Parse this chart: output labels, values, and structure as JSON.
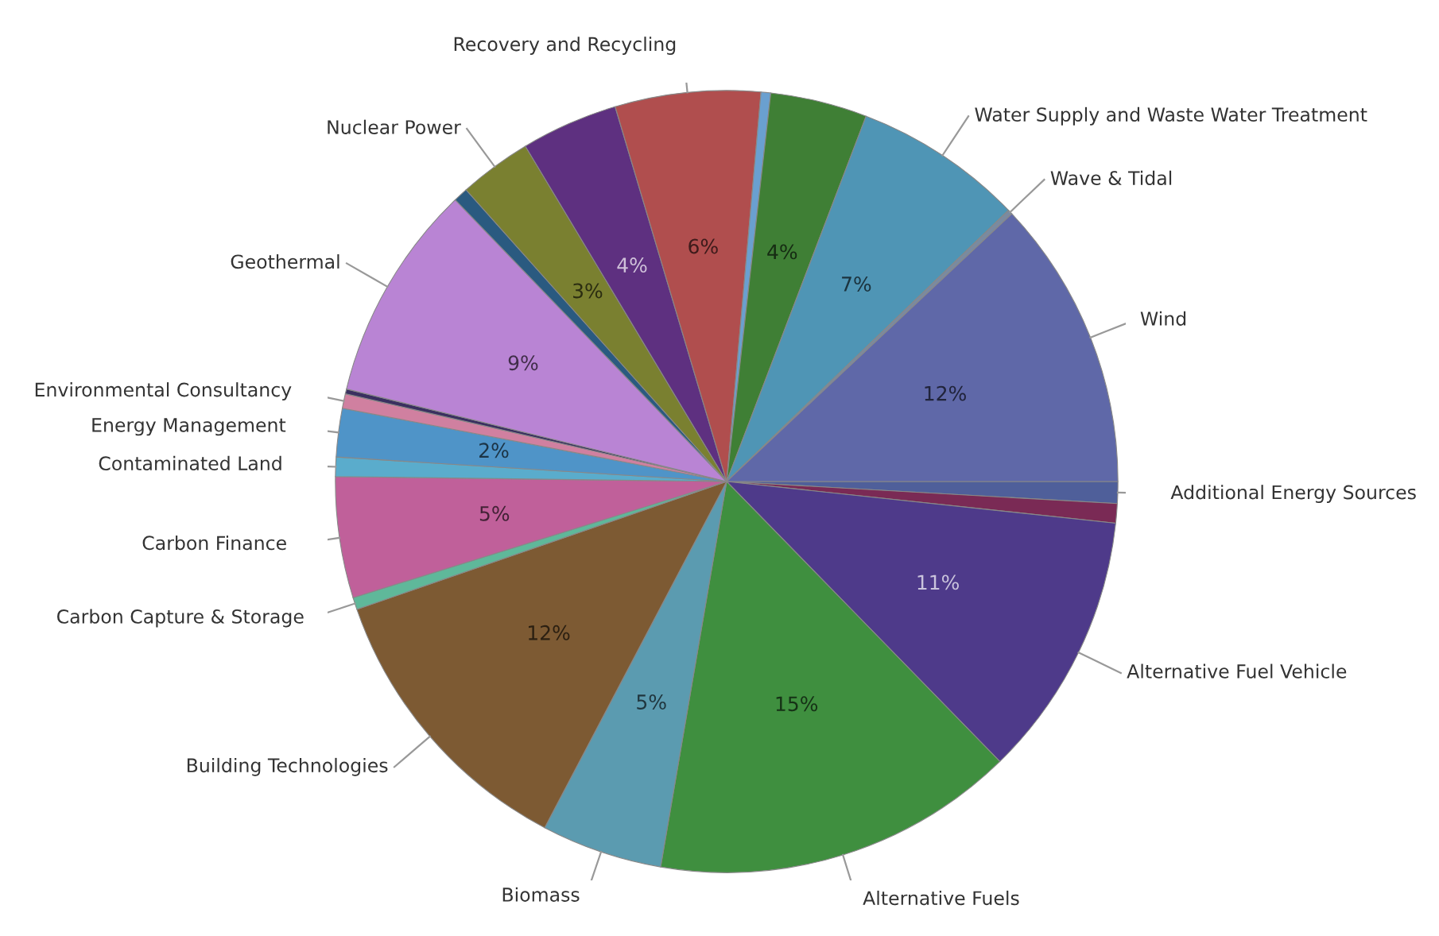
{
  "chart_data": {
    "type": "pie",
    "categories": [
      "Additional Energy Sources",
      null,
      "Alternative Fuel Vehicle",
      "Alternative Fuels",
      "Biomass",
      "Building Technologies",
      "Carbon Capture & Storage",
      "Carbon Finance",
      "Contaminated Land",
      "Energy Management",
      "Environmental Consultancy",
      null,
      "Geothermal",
      null,
      "Nuclear Power",
      null,
      "Recovery and Recycling",
      null,
      null,
      "Water Supply and Waste Water Treatment",
      "Wave & Tidal",
      "Wind"
    ],
    "values": [
      0.9,
      0.8,
      11,
      15,
      5,
      12,
      0.5,
      5,
      0.8,
      2,
      0.6,
      0.2,
      9,
      0.6,
      3,
      4,
      6,
      0.4,
      4,
      7,
      0.2,
      12
    ],
    "value_labels": [
      null,
      null,
      "11%",
      "15%",
      "5%",
      "12%",
      null,
      "5%",
      null,
      "2%",
      null,
      null,
      "9%",
      null,
      "3%",
      "4%",
      "6%",
      null,
      "4%",
      "7%",
      null,
      "12%"
    ],
    "colors": [
      "#4f5f9a",
      "#7a2a55",
      "#4e3a8a",
      "#3f8f3f",
      "#5b9bb0",
      "#7d5a33",
      "#5fb89a",
      "#c0609a",
      "#5aaccc",
      "#4f94c8",
      "#d080a0",
      "#3a3060",
      "#b984d4",
      "#2a5a80",
      "#7a8030",
      "#5e3080",
      "#b04e4e",
      "#6aa0d0",
      "#3f7f35",
      "#4f95b5",
      "#7a8aa0",
      "#5f68a8"
    ],
    "legend": false
  }
}
